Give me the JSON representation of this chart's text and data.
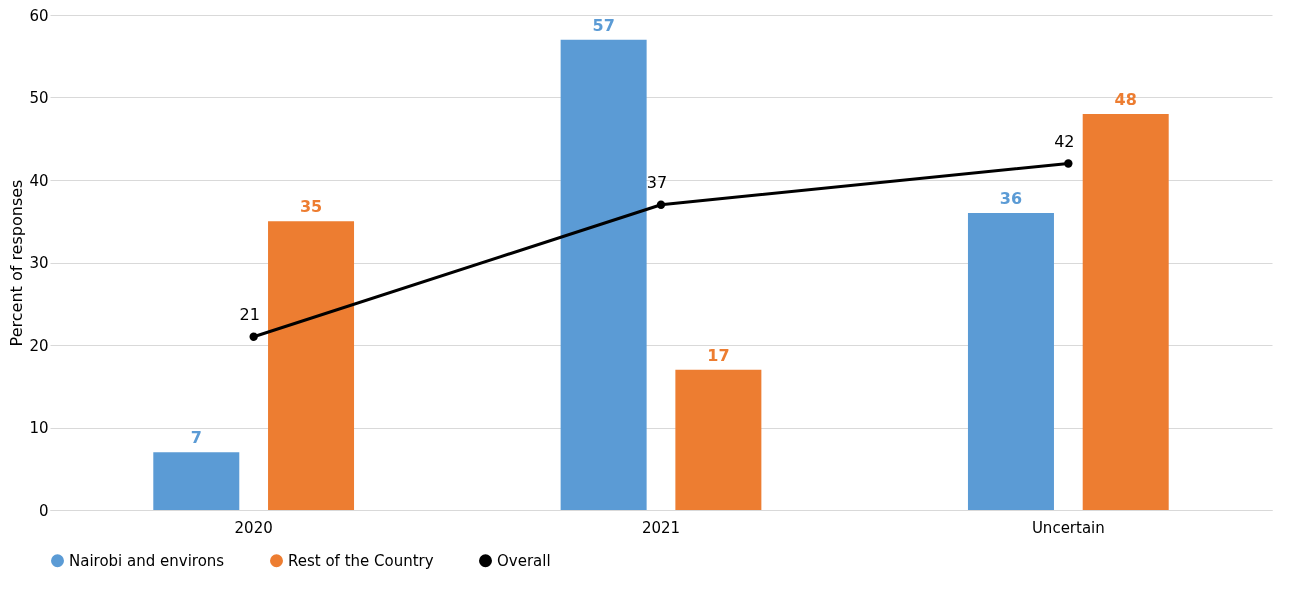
{
  "chart_data": {
    "type": "bar",
    "ylabel": "Percent of responses",
    "categories": [
      "2020",
      "2021",
      "Uncertain"
    ],
    "series": [
      {
        "name": "Nairobi and environs",
        "color": "#5b9bd5",
        "values": [
          7,
          57,
          36
        ]
      },
      {
        "name": "Rest of the Country",
        "color": "#ed7d31",
        "values": [
          35,
          17,
          48
        ]
      },
      {
        "name": "Overall",
        "type": "line",
        "color": "#000000",
        "values": [
          21,
          37,
          42
        ]
      }
    ],
    "ylim": [
      0,
      60
    ],
    "yticks": [
      0,
      10,
      20,
      30,
      40,
      50,
      60
    ],
    "grid": "y",
    "legend": "bottom",
    "marker": "circle",
    "line_style": "solid",
    "data_labels": true
  }
}
